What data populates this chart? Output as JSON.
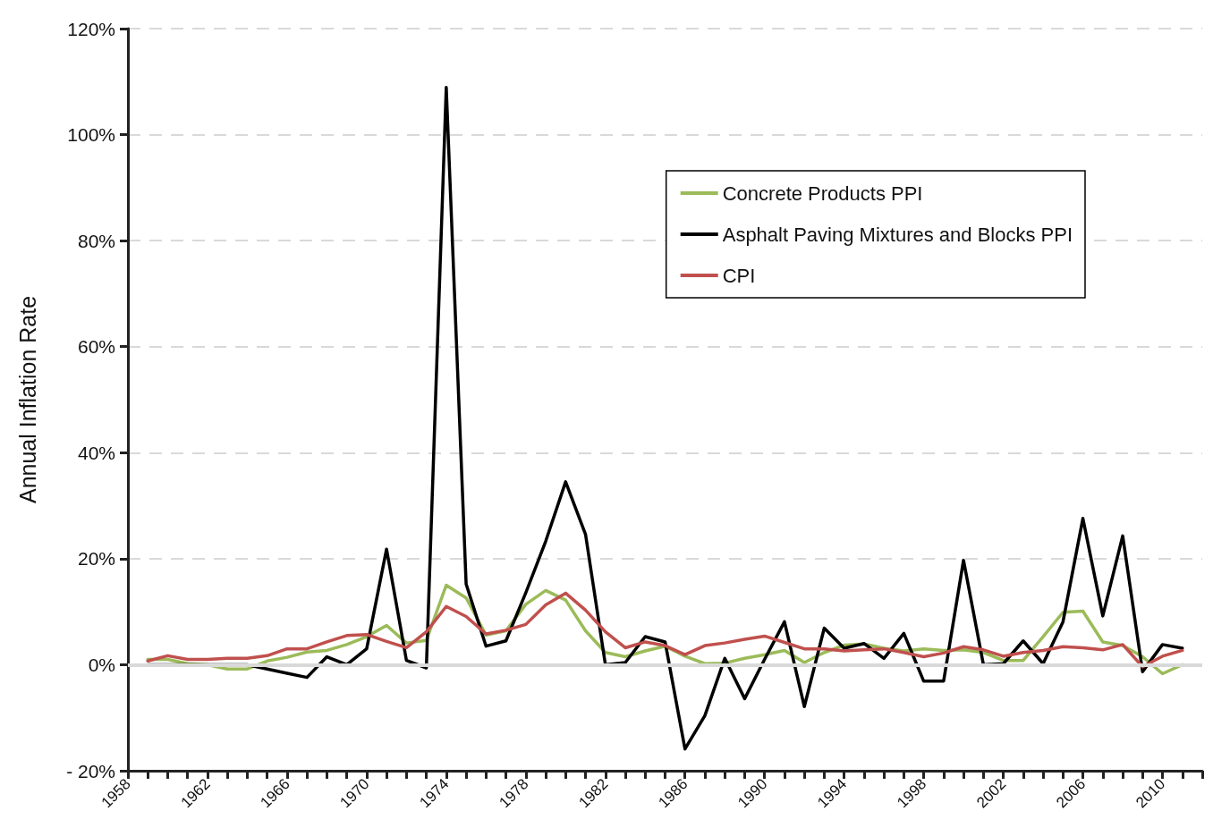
{
  "chart_data": {
    "type": "line",
    "ylabel": "Annual Inflation Rate",
    "x": [
      1959,
      1960,
      1961,
      1962,
      1963,
      1964,
      1965,
      1966,
      1967,
      1968,
      1969,
      1970,
      1971,
      1972,
      1973,
      1974,
      1975,
      1976,
      1977,
      1978,
      1979,
      1980,
      1981,
      1982,
      1983,
      1984,
      1985,
      1986,
      1987,
      1988,
      1989,
      1990,
      1991,
      1992,
      1993,
      1994,
      1995,
      1996,
      1997,
      1998,
      1999,
      2000,
      2001,
      2002,
      2003,
      2004,
      2005,
      2006,
      2007,
      2008,
      2009,
      2010,
      2011
    ],
    "series": [
      {
        "name": "Concrete Products PPI",
        "color": "#9bbb59",
        "values": [
          1.0,
          1.0,
          0.2,
          0,
          -0.8,
          -0.8,
          0.7,
          1.4,
          2.4,
          2.7,
          3.8,
          5.3,
          7.4,
          4.1,
          4.6,
          15.0,
          12.6,
          5.6,
          6.4,
          11.4,
          14.0,
          12.2,
          6.4,
          2.3,
          1.5,
          2.6,
          3.5,
          1.6,
          0.2,
          0.3,
          1.2,
          1.9,
          2.7,
          0.4,
          2.3,
          3.7,
          3.9,
          3.1,
          2.6,
          3.0,
          2.7,
          2.8,
          2.3,
          0.8,
          0.8,
          5.3,
          9.9,
          10.1,
          4.3,
          3.6,
          1.5,
          -1.7,
          0
        ]
      },
      {
        "name": "Asphalt Paving Mixtures and Blocks PPI",
        "color": "#000000",
        "values": [
          0,
          0,
          0,
          0,
          0,
          0,
          -0.8,
          -1.6,
          -2.4,
          1.5,
          0,
          3,
          21.8,
          0.8,
          -0.6,
          108.9,
          15.2,
          3.5,
          4.5,
          13.6,
          23.3,
          34.5,
          24.6,
          0,
          0.4,
          5.3,
          4.3,
          -15.9,
          -9.6,
          1.2,
          -6.4,
          1,
          8.1,
          -7.9,
          6.9,
          3.1,
          4.0,
          1.2,
          5.9,
          -3.1,
          -3.1,
          19.7,
          0,
          0.2,
          4.5,
          0.2,
          8.1,
          27.6,
          9.2,
          24.3,
          -1.3,
          3.8,
          3.1
        ]
      },
      {
        "name": "CPI",
        "color": "#c0504d",
        "values": [
          0.7,
          1.7,
          1.0,
          1.0,
          1.2,
          1.2,
          1.7,
          3.0,
          3.0,
          4.3,
          5.5,
          5.7,
          4.4,
          3.2,
          6.2,
          11.0,
          9.1,
          5.8,
          6.5,
          7.6,
          11.3,
          13.5,
          10.3,
          6.2,
          3.2,
          4.3,
          3.6,
          1.9,
          3.6,
          4.1,
          4.8,
          5.4,
          4.2,
          3.0,
          3.0,
          2.6,
          2.8,
          3.0,
          2.3,
          1.5,
          2.2,
          3.4,
          2.8,
          1.6,
          2.3,
          2.7,
          3.4,
          3.2,
          2.8,
          3.8,
          -0.4,
          1.6,
          2.7
        ]
      }
    ],
    "xlim": [
      1958,
      2012
    ],
    "xticks": [
      1958,
      {
        "value": 1959,
        "label": null
      },
      {
        "value": 1960,
        "label": null
      },
      {
        "value": 1961,
        "label": null
      },
      1962,
      {
        "value": 1963,
        "label": null
      },
      {
        "value": 1964,
        "label": null
      },
      {
        "value": 1965,
        "label": null
      },
      1966,
      {
        "value": 1967,
        "label": null
      },
      {
        "value": 1968,
        "label": null
      },
      {
        "value": 1969,
        "label": null
      },
      1970,
      {
        "value": 1971,
        "label": null
      },
      {
        "value": 1972,
        "label": null
      },
      {
        "value": 1973,
        "label": null
      },
      1974,
      {
        "value": 1975,
        "label": null
      },
      {
        "value": 1976,
        "label": null
      },
      {
        "value": 1977,
        "label": null
      },
      1978,
      {
        "value": 1979,
        "label": null
      },
      {
        "value": 1980,
        "label": null
      },
      {
        "value": 1981,
        "label": null
      },
      1982,
      {
        "value": 1983,
        "label": null
      },
      {
        "value": 1984,
        "label": null
      },
      {
        "value": 1985,
        "label": null
      },
      1986,
      {
        "value": 1987,
        "label": null
      },
      {
        "value": 1988,
        "label": null
      },
      {
        "value": 1989,
        "label": null
      },
      1990,
      {
        "value": 1991,
        "label": null
      },
      {
        "value": 1992,
        "label": null
      },
      {
        "value": 1993,
        "label": null
      },
      1994,
      {
        "value": 1995,
        "label": null
      },
      {
        "value": 1996,
        "label": null
      },
      {
        "value": 1997,
        "label": null
      },
      1998,
      {
        "value": 1999,
        "label": null
      },
      {
        "value": 2000,
        "label": null
      },
      {
        "value": 2001,
        "label": null
      },
      2002,
      {
        "value": 2003,
        "label": null
      },
      {
        "value": 2004,
        "label": null
      },
      {
        "value": 2005,
        "label": null
      },
      2006,
      {
        "value": 2007,
        "label": null
      },
      {
        "value": 2008,
        "label": null
      },
      {
        "value": 2009,
        "label": null
      },
      2010,
      {
        "value": 2011,
        "label": null
      },
      {
        "value": 2012,
        "label": null
      }
    ],
    "ylim": [
      -20,
      120
    ],
    "yticks": [
      {
        "value": -20,
        "label": "- 20%"
      },
      {
        "value": 0,
        "label": "0%"
      },
      {
        "value": 20,
        "label": "20%"
      },
      {
        "value": 40,
        "label": "40%"
      },
      {
        "value": 60,
        "label": "60%"
      },
      {
        "value": 80,
        "label": "80%"
      },
      {
        "value": 100,
        "label": "100%"
      },
      {
        "value": 120,
        "label": "120%"
      }
    ],
    "ref_lines": [
      {
        "axis": "y",
        "value": 0,
        "color": "#d9d9d9"
      }
    ],
    "grid": "y",
    "legend": "top right",
    "marker": "none",
    "line_style": "solid"
  }
}
